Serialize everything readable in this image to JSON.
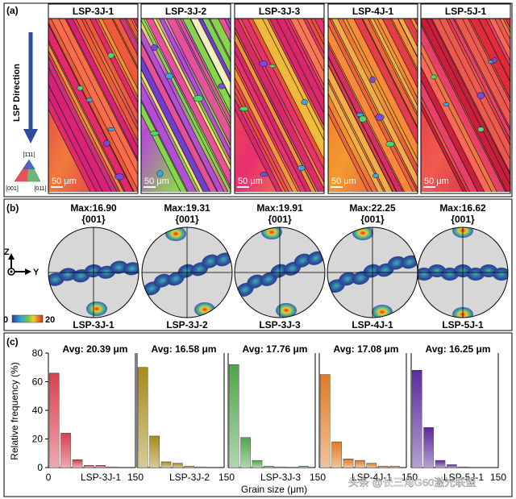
{
  "panel_a": {
    "letter": "(a)",
    "direction_label": "LSP Direction",
    "samples": [
      "LSP-3J-1",
      "LSP-3J-2",
      "LSP-3J-3",
      "LSP-4J-1",
      "LSP-5J-1"
    ],
    "scale_label": "50 μm",
    "legend": {
      "top": "[1̄11]",
      "left": "[001]",
      "right": "[011]"
    }
  },
  "panel_b": {
    "letter": "(b)",
    "axis_z": "Z",
    "axis_y": "Y",
    "plane": "{001}",
    "max_values": [
      "Max:16.90",
      "Max:19.31",
      "Max:19.91",
      "Max:22.25",
      "Max:16.62"
    ],
    "samples": [
      "LSP-3J-1",
      "LSP-3J-2",
      "LSP-3J-3",
      "LSP-4J-1",
      "LSP-5J-1"
    ],
    "colorbar_min": "0",
    "colorbar_max": "20"
  },
  "chart_data": {
    "type": "bar",
    "letter": "(c)",
    "ylabel": "Relative frequency (%)",
    "xlabel": "Grain size (μm)",
    "ylim": [
      0,
      80
    ],
    "xlim": [
      0,
      150
    ],
    "yticks": [
      "0",
      "20",
      "40",
      "60",
      "80"
    ],
    "xticks": [
      "0",
      "150",
      "150",
      "150",
      "150",
      "150"
    ],
    "bin_centers": [
      10,
      30,
      50,
      70,
      90,
      110,
      130
    ],
    "panels": [
      {
        "name": "LSP-3J-1",
        "avg": "Avg: 20.39 μm",
        "color": "#d8414f",
        "values": [
          66,
          24,
          5.5,
          1.5,
          1.5,
          0.5,
          0
        ]
      },
      {
        "name": "LSP-3J-2",
        "avg": "Avg: 16.58 μm",
        "color": "#a88a1e",
        "values": [
          70,
          22,
          4,
          3,
          1,
          0.5,
          0
        ]
      },
      {
        "name": "LSP-3J-3",
        "avg": "Avg: 17.76 μm",
        "color": "#4fa64a",
        "values": [
          72,
          21,
          5,
          1,
          0.5,
          0,
          1
        ]
      },
      {
        "name": "LSP-4J-1",
        "avg": "Avg: 17.08 μm",
        "color": "#e07a25",
        "values": [
          65,
          18,
          6,
          5,
          3,
          1,
          1
        ]
      },
      {
        "name": "LSP-5J-1",
        "avg": "Avg: 16.25 μm",
        "color": "#5b2b9c",
        "values": [
          68,
          28,
          5,
          2,
          0.5,
          0,
          0
        ]
      }
    ]
  },
  "watermark": "头条 @长三角G60激光联盟",
  "colors": {
    "frame": "#000000",
    "pf_bg": "#d7d7d7",
    "pf_low": "#2b4a9a",
    "pf_high": "#d63a2a"
  }
}
